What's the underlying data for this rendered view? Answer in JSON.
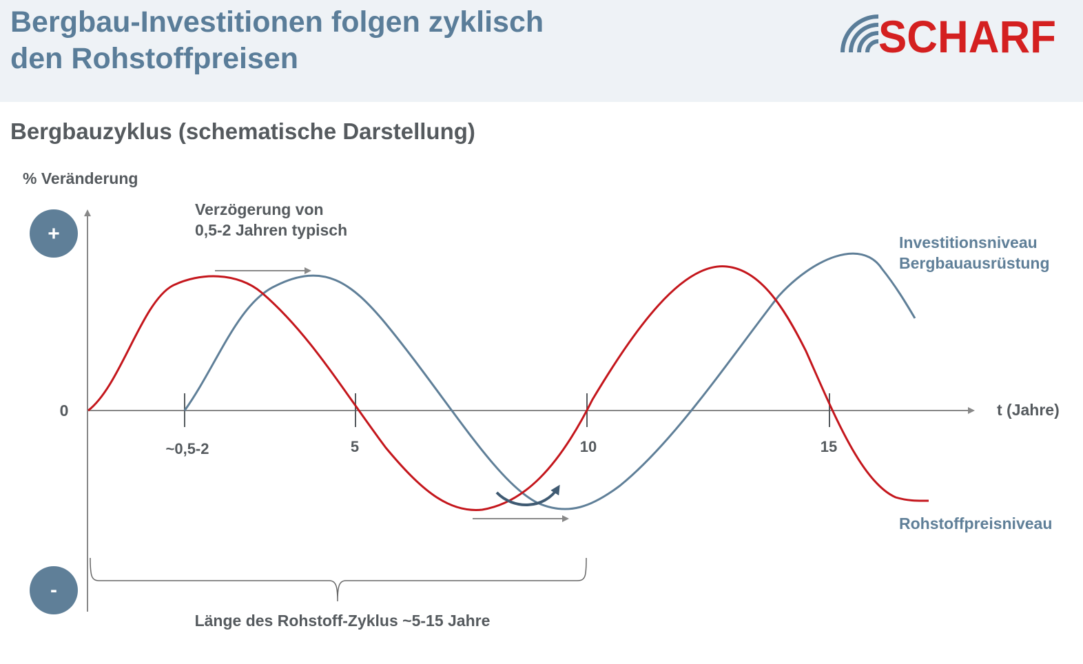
{
  "header": {
    "title_line1": "Bergbau-Investitionen folgen zyklisch",
    "title_line2": "den Rohstoffpreisen",
    "logo_text": "SCHARF"
  },
  "subtitle": "Bergbauzyklus (schematische Darstellung)",
  "chart_data": {
    "type": "line",
    "ylabel": "% Veränderung",
    "xlabel": "t (Jahre)",
    "y_plus_label": "+",
    "y_minus_label": "-",
    "y_zero_label": "0",
    "x_ticks": [
      "~0,5-2",
      "5",
      "10",
      "15"
    ],
    "annotations": {
      "delay_line1": "Verzögerung von",
      "delay_line2": "0,5-2 Jahren typisch",
      "cycle_length": "Länge des Rohstoff-Zyklus ~5-15 Jahre"
    },
    "series": [
      {
        "name": "Rohstoffpreisniveau",
        "color": "#c4161c"
      },
      {
        "name_line1": "Investitionsniveau",
        "name_line2": "Bergbauausrüstung",
        "color": "#5f7f98"
      }
    ]
  },
  "colors": {
    "accent_blue": "#5a7d99",
    "red": "#c4161c",
    "axis_gray": "#888888",
    "header_bg": "#eef2f6"
  }
}
